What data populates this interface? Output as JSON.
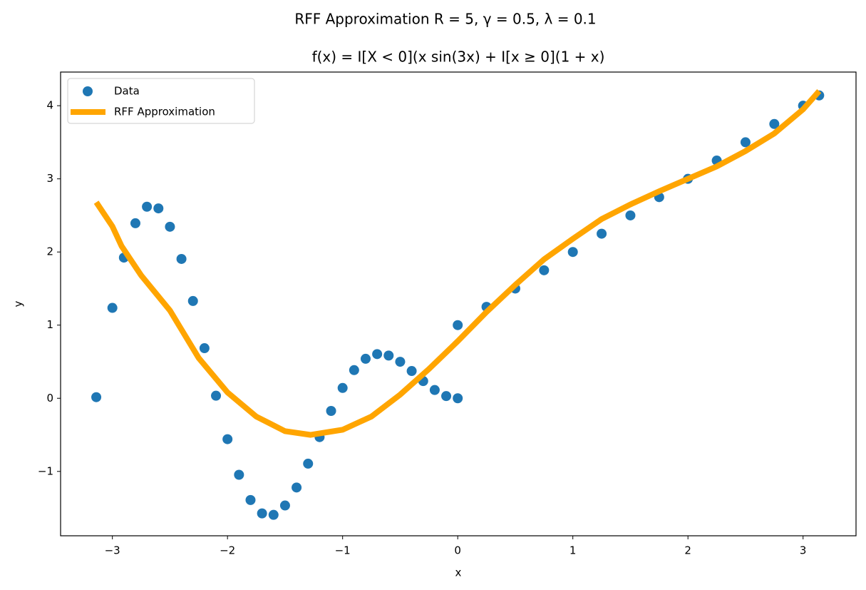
{
  "chart_data": {
    "type": "scatter",
    "suptitle": "RFF Approximation R = 5, γ = 0.5, λ = 0.1",
    "title": "f(x) = I[X < 0](x sin(3x) + I[x ≥ 0](1 + x)",
    "xlabel": "x",
    "ylabel": "y",
    "xlim": [
      -3.45,
      3.46
    ],
    "ylim": [
      -1.88,
      4.46
    ],
    "xticks": [
      {
        "value": -3,
        "label": "−3"
      },
      {
        "value": -2,
        "label": "−2"
      },
      {
        "value": -1,
        "label": "−1"
      },
      0,
      1,
      2,
      3
    ],
    "yticks": [
      {
        "value": -1,
        "label": "−1"
      },
      0,
      1,
      2,
      3,
      4
    ],
    "legend": "upper left",
    "series": [
      {
        "name": "Data",
        "type": "scatter",
        "color": "#1f77b4",
        "x": [
          -3.14,
          -3.0,
          -2.9,
          -2.8,
          -2.7,
          -2.6,
          -2.5,
          -2.4,
          -2.3,
          -2.2,
          -2.1,
          -2.0,
          -1.9,
          -1.8,
          -1.7,
          -1.6,
          -1.5,
          -1.4,
          -1.3,
          -1.2,
          -1.1,
          -1.0,
          -0.9,
          -0.8,
          -0.7,
          -0.6,
          -0.5,
          -0.4,
          -0.3,
          -0.2,
          -0.1,
          0,
          0,
          0.25,
          0.5,
          0.75,
          1.0,
          1.25,
          1.5,
          1.75,
          2.0,
          2.25,
          2.5,
          2.75,
          3.0,
          3.14
        ],
        "values": [
          0.015,
          1.236,
          1.923,
          2.393,
          2.619,
          2.596,
          2.345,
          1.905,
          1.33,
          0.685,
          0.035,
          -0.559,
          -1.046,
          -1.391,
          -1.574,
          -1.594,
          -1.466,
          -1.22,
          -0.894,
          -0.531,
          -0.173,
          0.141,
          0.385,
          0.54,
          0.604,
          0.584,
          0.499,
          0.373,
          0.235,
          0.113,
          0.03,
          0,
          1,
          1.25,
          1.5,
          1.75,
          2.0,
          2.25,
          2.5,
          2.75,
          3.0,
          3.25,
          3.5,
          3.75,
          4.0,
          4.14
        ]
      },
      {
        "name": "RFF Approximation",
        "type": "line",
        "color": "#ffa500",
        "x": [
          -3.14,
          -3.0,
          -2.92,
          -2.75,
          -2.5,
          -2.25,
          -2.0,
          -1.75,
          -1.5,
          -1.28,
          -1.0,
          -0.75,
          -0.5,
          -0.25,
          0,
          0.25,
          0.5,
          0.75,
          1.0,
          1.25,
          1.5,
          1.75,
          2.0,
          2.25,
          2.5,
          2.75,
          3.0,
          3.14
        ],
        "values": [
          2.68,
          2.35,
          2.08,
          1.68,
          1.2,
          0.55,
          0.08,
          -0.25,
          -0.45,
          -0.5,
          -0.43,
          -0.25,
          0.05,
          0.4,
          0.78,
          1.18,
          1.55,
          1.9,
          2.18,
          2.45,
          2.65,
          2.83,
          3.0,
          3.17,
          3.38,
          3.62,
          3.95,
          4.2
        ]
      }
    ]
  }
}
